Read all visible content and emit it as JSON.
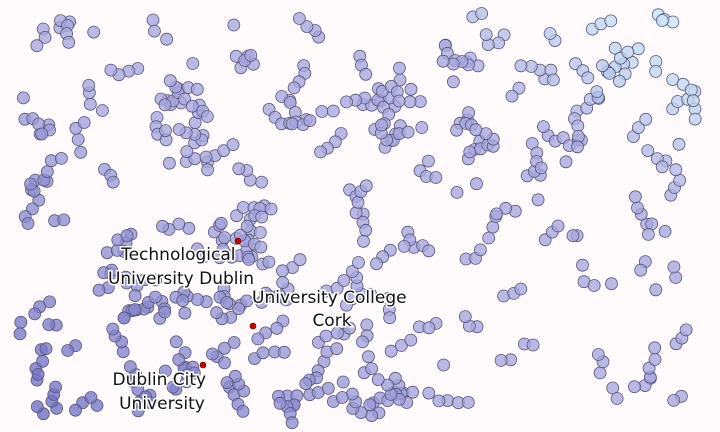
{
  "map": {
    "dot_color_main": "#a7a7e0",
    "dot_color_dark": "#4b4bb0",
    "dot_color_light": "#c9e6f7",
    "dot_stroke": "#555577",
    "highlight_dot": "#cc0000",
    "labels": [
      {
        "id": "tu-dublin",
        "lines": [
          "Technological",
          "University Dublin"
        ]
      },
      {
        "id": "ucc",
        "lines": [
          "University College",
          "Cork"
        ]
      },
      {
        "id": "dcu",
        "lines": [
          "Dublin City",
          "University"
        ]
      }
    ]
  }
}
